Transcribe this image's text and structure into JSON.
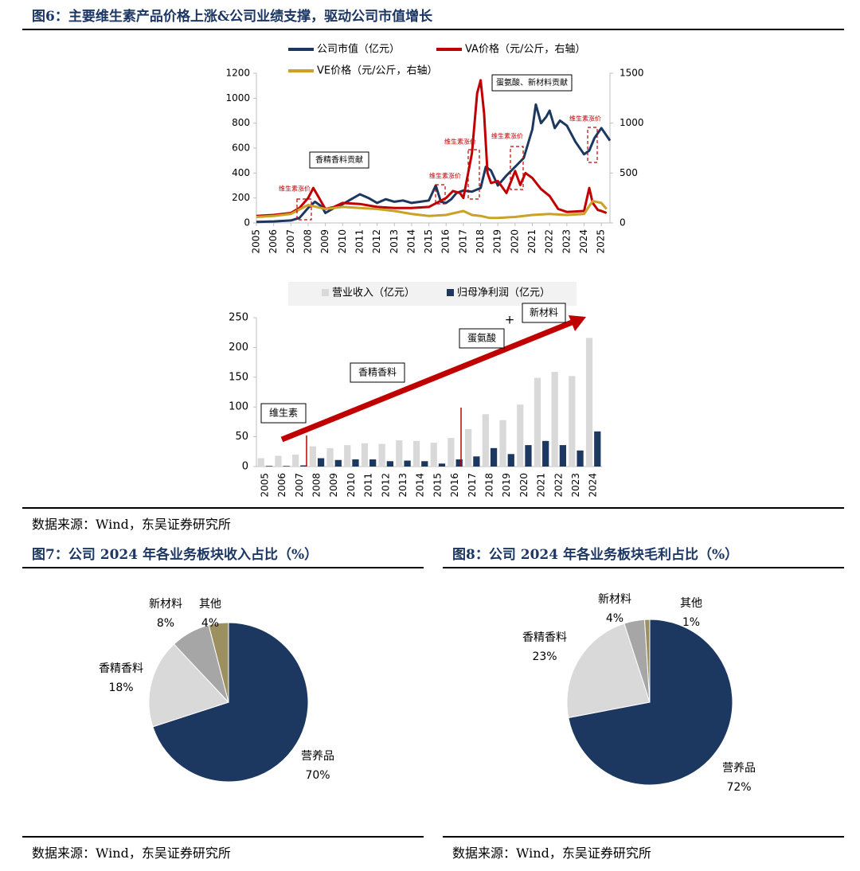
{
  "fig6": {
    "title": "图6：主要维生素产品价格上涨&公司业绩支撑，驱动公司市值增长",
    "source": "数据来源：Wind，东吴证券研究所"
  },
  "fig7": {
    "title": "图7：公司 2024 年各业务板块收入占比（%）",
    "source": "数据来源：Wind，东吴证券研究所"
  },
  "fig8": {
    "title": "图8：公司 2024 年各业务板块毛利占比（%）",
    "source": "数据来源：Wind，东吴证券研究所"
  },
  "colors": {
    "navy": "#1c3760",
    "red": "#c00000",
    "gold": "#c9a227",
    "lightgray": "#d9d9d9",
    "gray": "#a6a6a6",
    "khaki": "#9c8f60"
  },
  "chart_data": [
    {
      "type": "line",
      "xlabel": "",
      "ylabel": "",
      "x_ticks": [
        "2005",
        "2006",
        "2007",
        "2008",
        "2009",
        "2010",
        "2011",
        "2012",
        "2013",
        "2014",
        "2015",
        "2016",
        "2017",
        "2018",
        "2019",
        "2020",
        "2021",
        "2022",
        "2023",
        "2024",
        "2025"
      ],
      "y_left": {
        "lim": [
          0,
          1200
        ],
        "ticks": [
          "0",
          "200",
          "400",
          "600",
          "800",
          "1000",
          "1200"
        ]
      },
      "y_right": {
        "lim": [
          0,
          1500
        ],
        "ticks": [
          "0",
          "500",
          "1000",
          "1500"
        ]
      },
      "legend": [
        "公司市值（亿元）",
        "VA价格（元/公斤，右轴）",
        "VE价格（元/公斤，右轴）"
      ],
      "series": [
        {
          "name": "公司市值（亿元）",
          "axis": "left",
          "color": "#1c3760",
          "x": [
            2005,
            2006,
            2007,
            2007.5,
            2008,
            2008.4,
            2008.8,
            2009,
            2009.5,
            2010,
            2010.5,
            2011,
            2011.5,
            2012,
            2012.5,
            2013,
            2013.5,
            2014,
            2014.5,
            2015,
            2015.4,
            2015.7,
            2016,
            2016.3,
            2016.6,
            2017,
            2017.5,
            2018,
            2018.3,
            2018.6,
            2019,
            2019.5,
            2020,
            2020.5,
            2021,
            2021.2,
            2021.5,
            2021.8,
            2022,
            2022.3,
            2022.6,
            2023,
            2023.5,
            2024,
            2024.3,
            2024.6,
            2024.8,
            2025,
            2025.3,
            2025.5
          ],
          "y": [
            8,
            12,
            20,
            40,
            120,
            170,
            130,
            80,
            120,
            150,
            190,
            230,
            200,
            160,
            190,
            170,
            180,
            160,
            170,
            180,
            300,
            170,
            160,
            190,
            240,
            260,
            250,
            280,
            450,
            420,
            300,
            380,
            450,
            520,
            750,
            950,
            800,
            850,
            900,
            760,
            820,
            780,
            650,
            550,
            580,
            680,
            720,
            760,
            700,
            660
          ]
        },
        {
          "name": "VA价格（元/公斤，右轴）",
          "axis": "right",
          "color": "#c00000",
          "x": [
            2005,
            2006,
            2007,
            2007.5,
            2008,
            2008.3,
            2008.6,
            2009,
            2009.5,
            2010,
            2011,
            2012,
            2013,
            2014,
            2015,
            2016,
            2016.4,
            2016.8,
            2017,
            2017.5,
            2017.8,
            2018,
            2018.2,
            2018.4,
            2018.6,
            2019,
            2019.5,
            2020,
            2020.3,
            2020.6,
            2021,
            2021.5,
            2022,
            2022.5,
            2023,
            2024,
            2024.3,
            2024.5,
            2024.8,
            2025,
            2025.3
          ],
          "y": [
            70,
            80,
            100,
            150,
            250,
            350,
            260,
            140,
            160,
            200,
            190,
            160,
            150,
            150,
            160,
            250,
            320,
            300,
            250,
            700,
            1300,
            1430,
            1100,
            500,
            400,
            420,
            300,
            520,
            380,
            500,
            450,
            340,
            270,
            140,
            110,
            120,
            350,
            200,
            130,
            120,
            100
          ]
        },
        {
          "name": "VE价格（元/公斤，右轴）",
          "axis": "right",
          "color": "#c9a227",
          "x": [
            2005,
            2006,
            2007,
            2008,
            2008.5,
            2009,
            2010,
            2011,
            2012,
            2013,
            2014,
            2015,
            2016,
            2017,
            2017.5,
            2018,
            2018.5,
            2019,
            2020,
            2021,
            2022,
            2023,
            2024,
            2024.5,
            2025,
            2025.3
          ],
          "y": [
            60,
            70,
            90,
            180,
            160,
            140,
            160,
            150,
            140,
            120,
            90,
            70,
            80,
            120,
            80,
            70,
            50,
            50,
            60,
            80,
            90,
            80,
            90,
            220,
            200,
            140
          ]
        }
      ],
      "annotations": [
        "香精香料贡献",
        "蛋氨酸、新材料贡献",
        "维生素涨价",
        "维生素涨价",
        "维生素涨价",
        "维生素涨价",
        "维生素涨价"
      ]
    },
    {
      "type": "bar",
      "categories": [
        "2005",
        "2006",
        "2007",
        "2008",
        "2009",
        "2010",
        "2011",
        "2012",
        "2013",
        "2014",
        "2015",
        "2016",
        "2017",
        "2018",
        "2019",
        "2020",
        "2021",
        "2022",
        "2023",
        "2024"
      ],
      "ylim": [
        0,
        250
      ],
      "y_ticks": [
        "0",
        "50",
        "100",
        "150",
        "200",
        "250"
      ],
      "legend": [
        "营业收入（亿元）",
        "归母净利润（亿元）"
      ],
      "series": [
        {
          "name": "营业收入（亿元）",
          "color": "#d9d9d9",
          "values": [
            14,
            18,
            20,
            34,
            31,
            36,
            39,
            38,
            44,
            43,
            40,
            48,
            63,
            88,
            78,
            104,
            149,
            159,
            152,
            216
          ]
        },
        {
          "name": "归母净利润（亿元）",
          "color": "#1c3760",
          "values": [
            1,
            1,
            2,
            14,
            11,
            12,
            12,
            9,
            10,
            9,
            5,
            12,
            17,
            31,
            21,
            36,
            43,
            36,
            27,
            59
          ]
        }
      ],
      "annotations": [
        "维生素",
        "香精香料",
        "蛋氨酸",
        "+",
        "新材料"
      ]
    },
    {
      "type": "pie",
      "labels": [
        "营养品",
        "香精香料",
        "新材料",
        "其他"
      ],
      "values": [
        70,
        18,
        8,
        4
      ],
      "value_labels": [
        "70%",
        "18%",
        "8%",
        "4%"
      ],
      "colors": [
        "#1c3760",
        "#d9d9d9",
        "#a6a6a6",
        "#9c8f60"
      ]
    },
    {
      "type": "pie",
      "labels": [
        "营养品",
        "香精香料",
        "新材料",
        "其他"
      ],
      "values": [
        72,
        23,
        4,
        1
      ],
      "value_labels": [
        "72%",
        "23%",
        "4%",
        "1%"
      ],
      "colors": [
        "#1c3760",
        "#d9d9d9",
        "#a6a6a6",
        "#9c8f60"
      ]
    }
  ]
}
